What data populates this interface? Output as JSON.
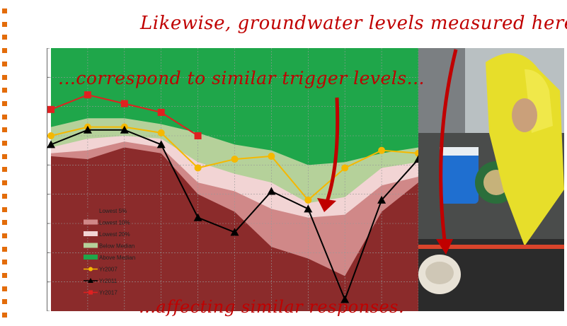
{
  "captions": {
    "top": "Likewise, groundwater levels measured here...",
    "middle": "...correspond to similar trigger levels...",
    "bottom": "...affecting similar responses."
  },
  "colors": {
    "bullet": "#e36c0a",
    "caption": "#c00000",
    "lowest5": "#8b2b2b",
    "lowest10": "#d08888",
    "lowest20": "#f2d4d4",
    "below_median": "#b5d19a",
    "above_median": "#1fa64a",
    "yr2007": "#f5b800",
    "yr2011": "#000000",
    "yr2017": "#e02020"
  },
  "chart_data": {
    "type": "area",
    "title": "",
    "xlabel": "",
    "ylabel": "",
    "x": [
      1,
      2,
      3,
      4,
      5,
      6,
      7,
      8,
      9,
      10,
      11
    ],
    "ylim": [
      0,
      9
    ],
    "grid": true,
    "legend_position": "lower-left",
    "bands": [
      {
        "name": "Lowest 5%",
        "upper": [
          5.3,
          5.2,
          5.6,
          5.4,
          4.0,
          3.4,
          2.2,
          1.8,
          1.2,
          3.4,
          4.4
        ]
      },
      {
        "name": "Lowest 10%",
        "upper": [
          5.4,
          5.5,
          5.8,
          5.6,
          4.4,
          4.1,
          3.5,
          3.2,
          3.3,
          4.3,
          4.6
        ]
      },
      {
        "name": "Lowest 20%",
        "upper": [
          5.6,
          5.9,
          6.0,
          5.9,
          5.1,
          4.7,
          4.4,
          3.7,
          3.9,
          4.9,
          5.1
        ]
      },
      {
        "name": "Below Median",
        "upper": [
          6.3,
          6.6,
          6.6,
          6.4,
          6.1,
          5.7,
          5.5,
          5.0,
          5.1,
          5.4,
          5.6
        ]
      },
      {
        "name": "Above Median",
        "upper": [
          9.0,
          9.0,
          9.0,
          9.0,
          9.0,
          9.0,
          9.0,
          9.0,
          9.0,
          9.0,
          9.0
        ]
      }
    ],
    "series": [
      {
        "name": "Yr2007",
        "values": [
          6.0,
          6.3,
          6.3,
          6.1,
          4.9,
          5.2,
          5.3,
          3.8,
          4.9,
          5.5,
          5.4
        ]
      },
      {
        "name": "Yr2011",
        "values": [
          5.7,
          6.2,
          6.2,
          5.7,
          3.2,
          2.7,
          4.1,
          3.5,
          0.4,
          3.8,
          5.2
        ]
      },
      {
        "name": "Yr2017",
        "values": [
          6.9,
          7.4,
          7.1,
          6.8,
          6.0,
          null,
          null,
          null,
          null,
          null,
          null
        ]
      }
    ]
  },
  "photo": {
    "subject": "person in yellow raincoat measuring groundwater level at a well"
  }
}
